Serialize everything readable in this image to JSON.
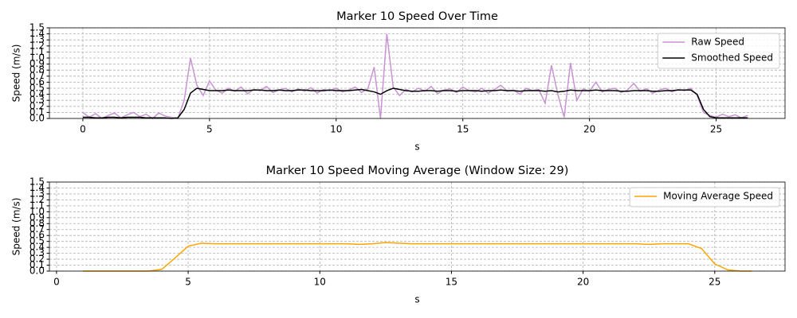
{
  "chart_data": [
    {
      "type": "line",
      "title": "Marker 10 Speed Over Time",
      "xlabel": "s",
      "ylabel": "Speed (m/s)",
      "x": [
        0,
        0.25,
        0.5,
        0.75,
        1,
        1.25,
        1.5,
        1.75,
        2,
        2.25,
        2.5,
        2.75,
        3,
        3.25,
        3.5,
        3.75,
        4,
        4.25,
        4.5,
        4.75,
        5,
        5.25,
        5.5,
        5.75,
        6,
        6.25,
        6.5,
        6.75,
        7,
        7.25,
        7.5,
        7.75,
        8,
        8.25,
        8.5,
        8.75,
        9,
        9.25,
        9.5,
        9.75,
        10,
        10.25,
        10.5,
        10.75,
        11,
        11.25,
        11.5,
        11.75,
        12,
        12.25,
        12.5,
        12.75,
        13,
        13.25,
        13.5,
        13.75,
        14,
        14.25,
        14.5,
        14.75,
        15,
        15.25,
        15.5,
        15.75,
        16,
        16.25,
        16.5,
        16.75,
        17,
        17.25,
        17.5,
        17.75,
        18,
        18.25,
        18.5,
        18.75,
        19,
        19.25,
        19.5,
        19.75,
        20,
        20.25,
        20.5,
        20.75,
        21,
        21.25,
        21.5,
        21.75,
        22,
        22.25,
        22.5,
        22.75,
        23,
        23.25,
        23.5,
        23.75,
        24,
        24.25,
        24.5,
        24.75,
        25,
        25.25,
        25.5,
        25.75,
        26,
        26.25
      ],
      "series": [
        {
          "name": "Raw Speed",
          "color": "#c994d4",
          "values": [
            0.1,
            0.02,
            0.08,
            0,
            0.05,
            0.09,
            0.01,
            0.06,
            0.1,
            0.03,
            0.07,
            0,
            0.09,
            0.04,
            0.02,
            0,
            0.3,
            1.0,
            0.55,
            0.38,
            0.62,
            0.47,
            0.42,
            0.5,
            0.45,
            0.52,
            0.41,
            0.48,
            0.46,
            0.53,
            0.43,
            0.47,
            0.5,
            0.44,
            0.49,
            0.45,
            0.51,
            0.42,
            0.48,
            0.46,
            0.5,
            0.44,
            0.47,
            0.52,
            0.43,
            0.49,
            0.85,
            0,
            1.4,
            0.52,
            0.38,
            0.48,
            0.44,
            0.5,
            0.45,
            0.53,
            0.41,
            0.47,
            0.49,
            0.43,
            0.52,
            0.46,
            0.44,
            0.5,
            0.42,
            0.48,
            0.55,
            0.45,
            0.47,
            0.4,
            0.5,
            0.46,
            0.48,
            0.25,
            0.88,
            0.4,
            0.02,
            0.92,
            0.3,
            0.49,
            0.45,
            0.6,
            0.44,
            0.48,
            0.5,
            0.43,
            0.47,
            0.58,
            0.45,
            0.49,
            0.42,
            0.47,
            0.5,
            0.44,
            0.48,
            0.46,
            0.5,
            0.38,
            0.1,
            0.05,
            0.02,
            0.07,
            0.03,
            0.06,
            0.01,
            0.05
          ]
        },
        {
          "name": "Smoothed Speed",
          "color": "#000000",
          "values": [
            0.02,
            0.02,
            0.01,
            0.01,
            0.02,
            0.02,
            0.01,
            0.02,
            0.02,
            0.02,
            0.01,
            0.01,
            0.01,
            0.01,
            0,
            0.01,
            0.15,
            0.42,
            0.5,
            0.48,
            0.46,
            0.46,
            0.46,
            0.47,
            0.46,
            0.46,
            0.46,
            0.47,
            0.47,
            0.46,
            0.46,
            0.47,
            0.46,
            0.46,
            0.47,
            0.47,
            0.46,
            0.46,
            0.46,
            0.47,
            0.46,
            0.46,
            0.46,
            0.47,
            0.48,
            0.46,
            0.44,
            0.4,
            0.46,
            0.5,
            0.48,
            0.46,
            0.45,
            0.45,
            0.46,
            0.46,
            0.45,
            0.46,
            0.46,
            0.45,
            0.46,
            0.46,
            0.46,
            0.45,
            0.46,
            0.46,
            0.47,
            0.46,
            0.46,
            0.45,
            0.46,
            0.46,
            0.46,
            0.45,
            0.46,
            0.44,
            0.45,
            0.47,
            0.46,
            0.46,
            0.46,
            0.47,
            0.46,
            0.46,
            0.46,
            0.45,
            0.45,
            0.46,
            0.46,
            0.46,
            0.45,
            0.45,
            0.46,
            0.46,
            0.47,
            0.47,
            0.47,
            0.4,
            0.15,
            0.03,
            0.01,
            0.01,
            0.01,
            0.01,
            0.01,
            0.01
          ]
        }
      ],
      "xlim": [
        -1.32,
        27.72
      ],
      "xticks": [
        0,
        5,
        10,
        15,
        20,
        25
      ],
      "ylim": [
        0,
        1.5
      ],
      "yticks": [
        {
          "value": 0,
          "label": "0.0"
        },
        0.1,
        0.2,
        0.3,
        0.4,
        0.5,
        0.6,
        0.7,
        0.8,
        0.9,
        {
          "value": 1,
          "label": "1.0"
        },
        1.1,
        1.2,
        1.3,
        1.4,
        1.5
      ],
      "grid": true,
      "legend": "upper right"
    },
    {
      "type": "line",
      "title": "Marker 10 Speed Moving Average (Window Size: 29)",
      "xlabel": "s",
      "ylabel": "Speed (m/s)",
      "x": [
        1,
        1.5,
        2,
        2.5,
        3,
        3.5,
        4,
        4.5,
        5,
        5.5,
        6,
        6.5,
        7,
        7.5,
        8,
        8.5,
        9,
        9.5,
        10,
        10.5,
        11,
        11.5,
        12,
        12.5,
        13,
        13.5,
        14,
        14.5,
        15,
        15.5,
        16,
        16.5,
        17,
        17.5,
        18,
        18.5,
        19,
        19.5,
        20,
        20.5,
        21,
        21.5,
        22,
        22.5,
        23,
        23.5,
        24,
        24.5,
        25,
        25.5,
        26,
        26.4
      ],
      "series": [
        {
          "name": "Moving Average Speed",
          "color": "#ffa500",
          "values": [
            0,
            0,
            0,
            0,
            0,
            0,
            0.03,
            0.22,
            0.42,
            0.47,
            0.46,
            0.46,
            0.46,
            0.46,
            0.46,
            0.46,
            0.46,
            0.46,
            0.46,
            0.46,
            0.46,
            0.45,
            0.46,
            0.48,
            0.47,
            0.46,
            0.46,
            0.46,
            0.46,
            0.46,
            0.46,
            0.46,
            0.46,
            0.46,
            0.46,
            0.46,
            0.46,
            0.46,
            0.46,
            0.46,
            0.46,
            0.46,
            0.46,
            0.45,
            0.46,
            0.46,
            0.46,
            0.38,
            0.12,
            0.02,
            0,
            0
          ]
        }
      ],
      "xlim": [
        -0.27,
        27.67
      ],
      "xticks": [
        0,
        5,
        10,
        15,
        20,
        25
      ],
      "ylim": [
        0,
        1.5
      ],
      "yticks": [
        {
          "value": 0,
          "label": "0.0"
        },
        0.1,
        0.2,
        0.3,
        0.4,
        0.5,
        0.6,
        0.7,
        0.8,
        0.9,
        {
          "value": 1,
          "label": "1.0"
        },
        1.1,
        1.2,
        1.3,
        1.4,
        1.5
      ],
      "grid": true,
      "legend": "upper right"
    }
  ]
}
